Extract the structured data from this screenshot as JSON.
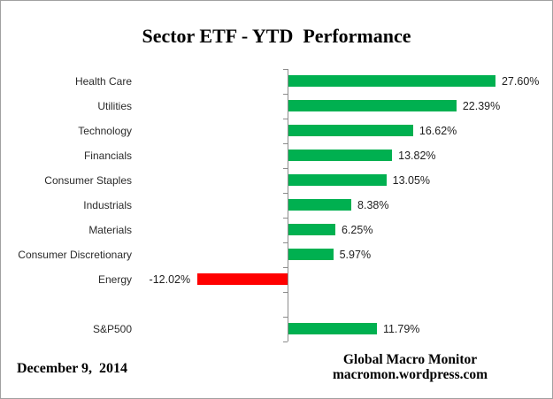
{
  "title": "Sector ETF - YTD  Performance",
  "footer": {
    "date": "December 9,  2014",
    "source_line1": "Global Macro Monitor",
    "source_line2": "macromon.wordpress.com"
  },
  "colors": {
    "positive_bar": "#00B050",
    "negative_bar": "#FF0000",
    "axis": "#8c8c8c",
    "category_text": "#2b2b2b",
    "value_text": "#1f1f1f"
  },
  "chart_data": {
    "type": "bar",
    "orientation": "horizontal",
    "title": "Sector ETF - YTD  Performance",
    "xlabel": "",
    "ylabel": "",
    "grid": false,
    "legend": null,
    "xlim": [
      -20,
      35
    ],
    "categories": [
      "Health Care",
      "Utilities",
      "Technology",
      "Financials",
      "Consumer Staples",
      "Industrials",
      "Materials",
      "Consumer Discretionary",
      "Energy",
      "",
      "S&P500"
    ],
    "values": [
      27.6,
      22.39,
      16.62,
      13.82,
      13.05,
      8.38,
      6.25,
      5.97,
      -12.02,
      null,
      11.79
    ],
    "value_labels": [
      "27.60%",
      "22.39%",
      "16.62%",
      "13.82%",
      "13.05%",
      "8.38%",
      "6.25%",
      "5.97%",
      "-12.02%",
      "",
      "11.79%"
    ]
  }
}
